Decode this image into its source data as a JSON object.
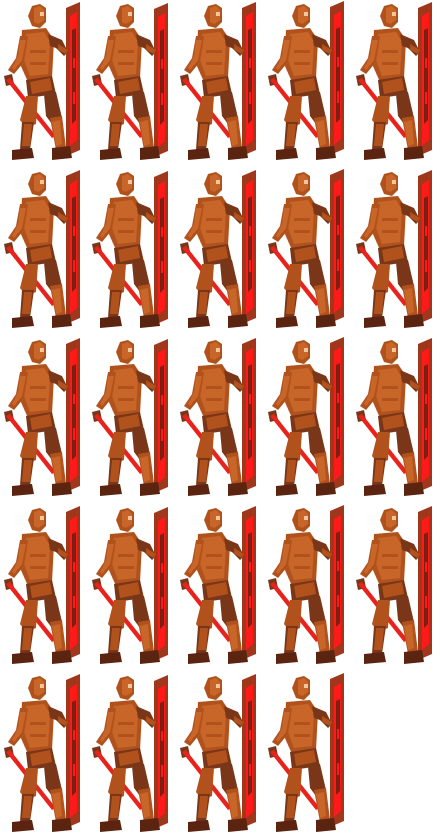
{
  "sprite_sheet": {
    "frame_count": 24,
    "columns": 5,
    "rows": 5,
    "subject": "armored-warrior-with-shield-and-spear",
    "colors": {
      "armor_light": "#c8662a",
      "armor_mid": "#b1521d",
      "armor_dark": "#7a3618",
      "outline_dark": "#5a2410",
      "skin_highlight": "#f2c7a0",
      "shield_base": "#a0361b",
      "shield_red": "#ff1a1a",
      "shield_dark": "#7b1f12",
      "spear_red": "#e8221d",
      "background": "#ffffff"
    }
  }
}
